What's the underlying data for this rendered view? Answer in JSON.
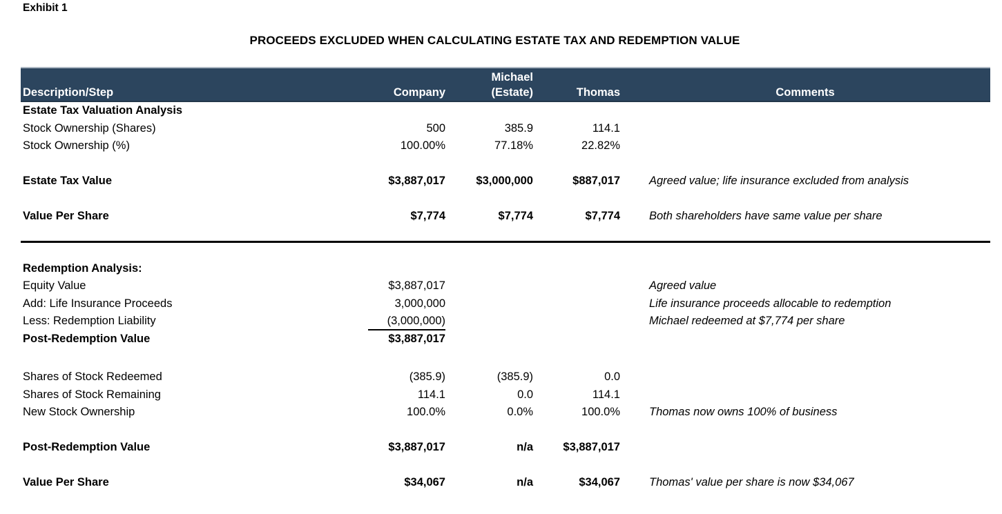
{
  "exhibit_label": "Exhibit 1",
  "title": "PROCEEDS EXCLUDED WHEN CALCULATING ESTATE TAX AND REDEMPTION VALUE",
  "colors": {
    "header_bg": "#2C455E",
    "header_text": "#FFFFFF",
    "text": "#000000",
    "rule": "#000000"
  },
  "table": {
    "header": {
      "description": "Description/Step",
      "company": "Company",
      "michael_line1": "Michael",
      "michael_line2": "(Estate)",
      "thomas": "Thomas",
      "comments": "Comments"
    },
    "rows": [
      {
        "desc": "Estate Tax Valuation Analysis",
        "bold": true
      },
      {
        "desc": "Stock Ownership (Shares)",
        "company": "500",
        "michael": "385.9",
        "thomas": "114.1"
      },
      {
        "desc": "Stock Ownership (%)",
        "company": "100.00%",
        "michael": "77.18%",
        "thomas": "22.82%"
      },
      {
        "type": "spacer"
      },
      {
        "desc": "Estate Tax Value",
        "company": "$3,887,017",
        "michael": "$3,000,000",
        "thomas": "$887,017",
        "comment": "Agreed value; life insurance excluded from analysis",
        "bold": true
      },
      {
        "type": "spacer"
      },
      {
        "desc": "Value Per Share",
        "company": "$7,774",
        "michael": "$7,774",
        "thomas": "$7,774",
        "comment": "Both shareholders have same value per share",
        "bold": true
      },
      {
        "type": "spacer",
        "size": "sm"
      },
      {
        "type": "divider"
      },
      {
        "type": "spacer",
        "size": "md"
      },
      {
        "desc": "Redemption Analysis:",
        "bold": true
      },
      {
        "desc": "Equity Value",
        "company": "$3,887,017",
        "comment": "Agreed value"
      },
      {
        "desc": "Add: Life Insurance Proceeds",
        "company": "3,000,000",
        "comment": "Life insurance proceeds allocable to redemption"
      },
      {
        "desc": "Less: Redemption Liability",
        "company": "(3,000,000)",
        "comment": "Michael redeemed at $7,774 per share",
        "company_underline": true
      },
      {
        "desc": "Post-Redemption Value",
        "company": "$3,887,017",
        "bold": true
      },
      {
        "type": "spacer",
        "size": "lg"
      },
      {
        "desc": "Shares of Stock Redeemed",
        "company": "(385.9)",
        "michael": "(385.9)",
        "thomas": "0.0"
      },
      {
        "desc": "Shares of Stock Remaining",
        "company": "114.1",
        "michael": "0.0",
        "thomas": "114.1"
      },
      {
        "desc": "New Stock Ownership",
        "company": "100.0%",
        "michael": "0.0%",
        "thomas": "100.0%",
        "comment": "Thomas now owns 100% of business"
      },
      {
        "type": "spacer"
      },
      {
        "desc": "Post-Redemption Value",
        "company": "$3,887,017",
        "michael": "n/a",
        "thomas": "$3,887,017",
        "bold": true
      },
      {
        "type": "spacer"
      },
      {
        "desc": "Value Per Share",
        "company": "$34,067",
        "michael": "n/a",
        "thomas": "$34,067",
        "comment": "Thomas' value per share is now $34,067",
        "bold": true
      }
    ]
  }
}
